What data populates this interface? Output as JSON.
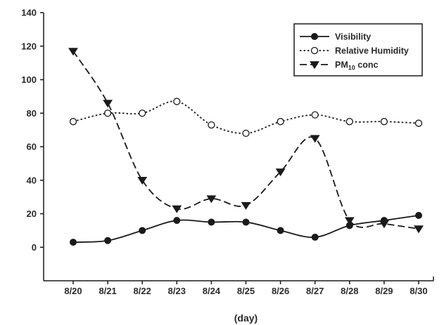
{
  "chart_data": {
    "type": "line",
    "title": "",
    "xlabel": "(day)",
    "ylabel": "",
    "categories": [
      "8/20",
      "8/21",
      "8/22",
      "8/23",
      "8/24",
      "8/25",
      "8/26",
      "8/27",
      "8/28",
      "8/29",
      "8/30"
    ],
    "yticks": [
      "0",
      "20",
      "40",
      "60",
      "80",
      "100",
      "120",
      "140"
    ],
    "ylim": [
      -20,
      140
    ],
    "grid": false,
    "legend_position": "top-right",
    "series": [
      {
        "name": "Visibility",
        "values": [
          3,
          4,
          10,
          16,
          15,
          15,
          10,
          6,
          13,
          16,
          19
        ],
        "line_style": "solid",
        "marker": "filled-circle",
        "color": "#1a1a1a"
      },
      {
        "name": "Relative Humidity",
        "values": [
          75,
          80,
          80,
          87,
          73,
          68,
          75,
          79,
          75,
          75,
          74
        ],
        "line_style": "dotted",
        "marker": "open-circle",
        "color": "#1a1a1a"
      },
      {
        "name": "PM10 conc",
        "name_parts": {
          "base": "PM",
          "sub": "10",
          "rest": " conc"
        },
        "values": [
          117,
          86,
          40,
          23,
          29,
          25,
          45,
          65,
          16,
          14,
          11
        ],
        "line_style": "dashed",
        "marker": "filled-triangle-down",
        "color": "#1a1a1a"
      }
    ]
  }
}
